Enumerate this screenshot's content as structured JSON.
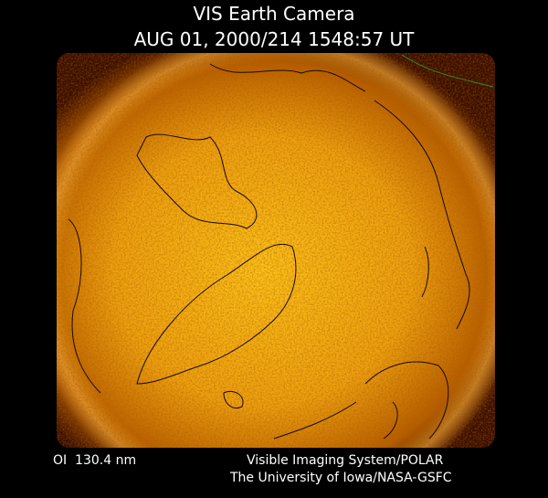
{
  "header": {
    "title": "VIS Earth Camera",
    "timestamp": "AUG 01, 2000/214 1548:57 UT"
  },
  "footer": {
    "wavelength": "OI  130.4 nm",
    "instrument": "Visible Imaging System/POLAR",
    "credit": "The University of Iowa/NASA-GSFC"
  }
}
